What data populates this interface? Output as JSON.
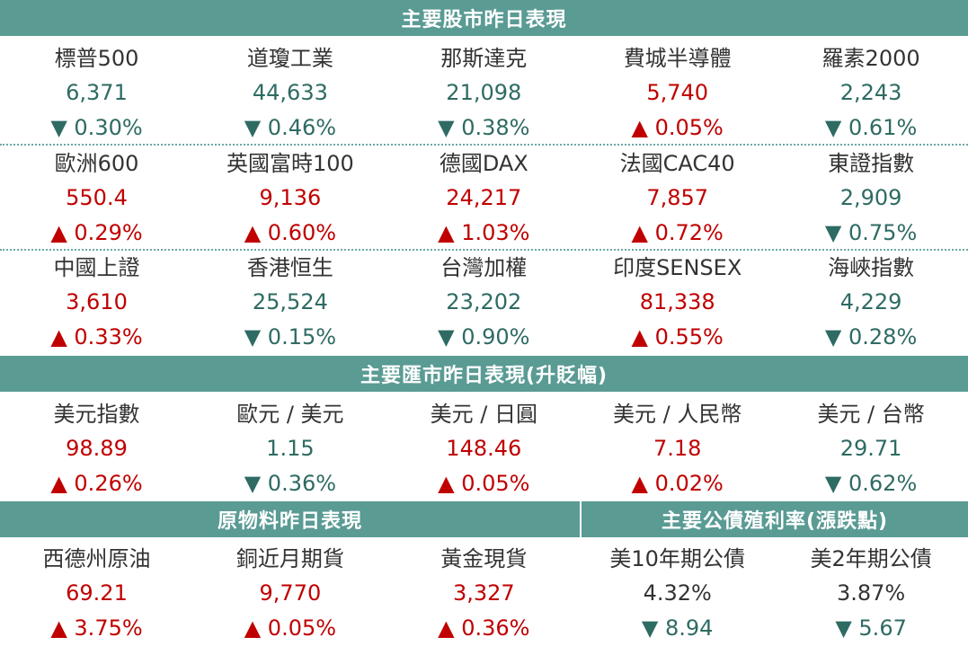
{
  "headers": {
    "stocks": "主要股市昨日表現",
    "fx": "主要匯市昨日表現(升貶幅)",
    "commodities": "原物料昨日表現",
    "bonds": "主要公債殖利率(漲跌點)"
  },
  "stock_rows": [
    [
      {
        "label": "標普500",
        "value": "6,371",
        "change": "▼ 0.30%",
        "dir": "down"
      },
      {
        "label": "道瓊工業",
        "value": "44,633",
        "change": "▼ 0.46%",
        "dir": "down"
      },
      {
        "label": "那斯達克",
        "value": "21,098",
        "change": "▼ 0.38%",
        "dir": "down"
      },
      {
        "label": "費城半導體",
        "value": "5,740",
        "change": "▲ 0.05%",
        "dir": "up"
      },
      {
        "label": "羅素2000",
        "value": "2,243",
        "change": "▼ 0.61%",
        "dir": "down"
      }
    ],
    [
      {
        "label": "歐洲600",
        "value": "550.4",
        "change": "▲ 0.29%",
        "dir": "up"
      },
      {
        "label": "英國富時100",
        "value": "9,136",
        "change": "▲ 0.60%",
        "dir": "up"
      },
      {
        "label": "德國DAX",
        "value": "24,217",
        "change": "▲ 1.03%",
        "dir": "up"
      },
      {
        "label": "法國CAC40",
        "value": "7,857",
        "change": "▲ 0.72%",
        "dir": "up"
      },
      {
        "label": "東證指數",
        "value": "2,909",
        "change": "▼ 0.75%",
        "dir": "down"
      }
    ],
    [
      {
        "label": "中國上證",
        "value": "3,610",
        "change": "▲ 0.33%",
        "dir": "up"
      },
      {
        "label": "香港恒生",
        "value": "25,524",
        "change": "▼ 0.15%",
        "dir": "down"
      },
      {
        "label": "台灣加權",
        "value": "23,202",
        "change": "▼ 0.90%",
        "dir": "down"
      },
      {
        "label": "印度SENSEX",
        "value": "81,338",
        "change": "▲ 0.55%",
        "dir": "up"
      },
      {
        "label": "海峽指數",
        "value": "4,229",
        "change": "▼ 0.28%",
        "dir": "down"
      }
    ]
  ],
  "fx_row": [
    {
      "label": "美元指數",
      "value": "98.89",
      "change": "▲ 0.26%",
      "dir": "up"
    },
    {
      "label": "歐元 / 美元",
      "value": "1.15",
      "change": "▼ 0.36%",
      "dir": "down"
    },
    {
      "label": "美元 / 日圓",
      "value": "148.46",
      "change": "▲ 0.05%",
      "dir": "up"
    },
    {
      "label": "美元 / 人民幣",
      "value": "7.18",
      "change": "▲ 0.02%",
      "dir": "up"
    },
    {
      "label": "美元 / 台幣",
      "value": "29.71",
      "change": "▼ 0.62%",
      "dir": "down"
    }
  ],
  "commodity_row": [
    {
      "label": "西德州原油",
      "value": "69.21",
      "change": "▲ 3.75%",
      "dir": "up"
    },
    {
      "label": "銅近月期貨",
      "value": "9,770",
      "change": "▲ 0.05%",
      "dir": "up"
    },
    {
      "label": "黃金現貨",
      "value": "3,327",
      "change": "▲ 0.36%",
      "dir": "up"
    },
    {
      "label": "美10年期公債",
      "value": "4.32%",
      "change": "▼ 8.94",
      "dir": "down"
    },
    {
      "label": "美2年期公債",
      "value": "3.87%",
      "change": "▼ 5.67",
      "dir": "down"
    }
  ],
  "colors": {
    "header_bg": "#5a9b94",
    "up": "#c00000",
    "down": "#2e6b63",
    "value_neutral": "#333333"
  }
}
